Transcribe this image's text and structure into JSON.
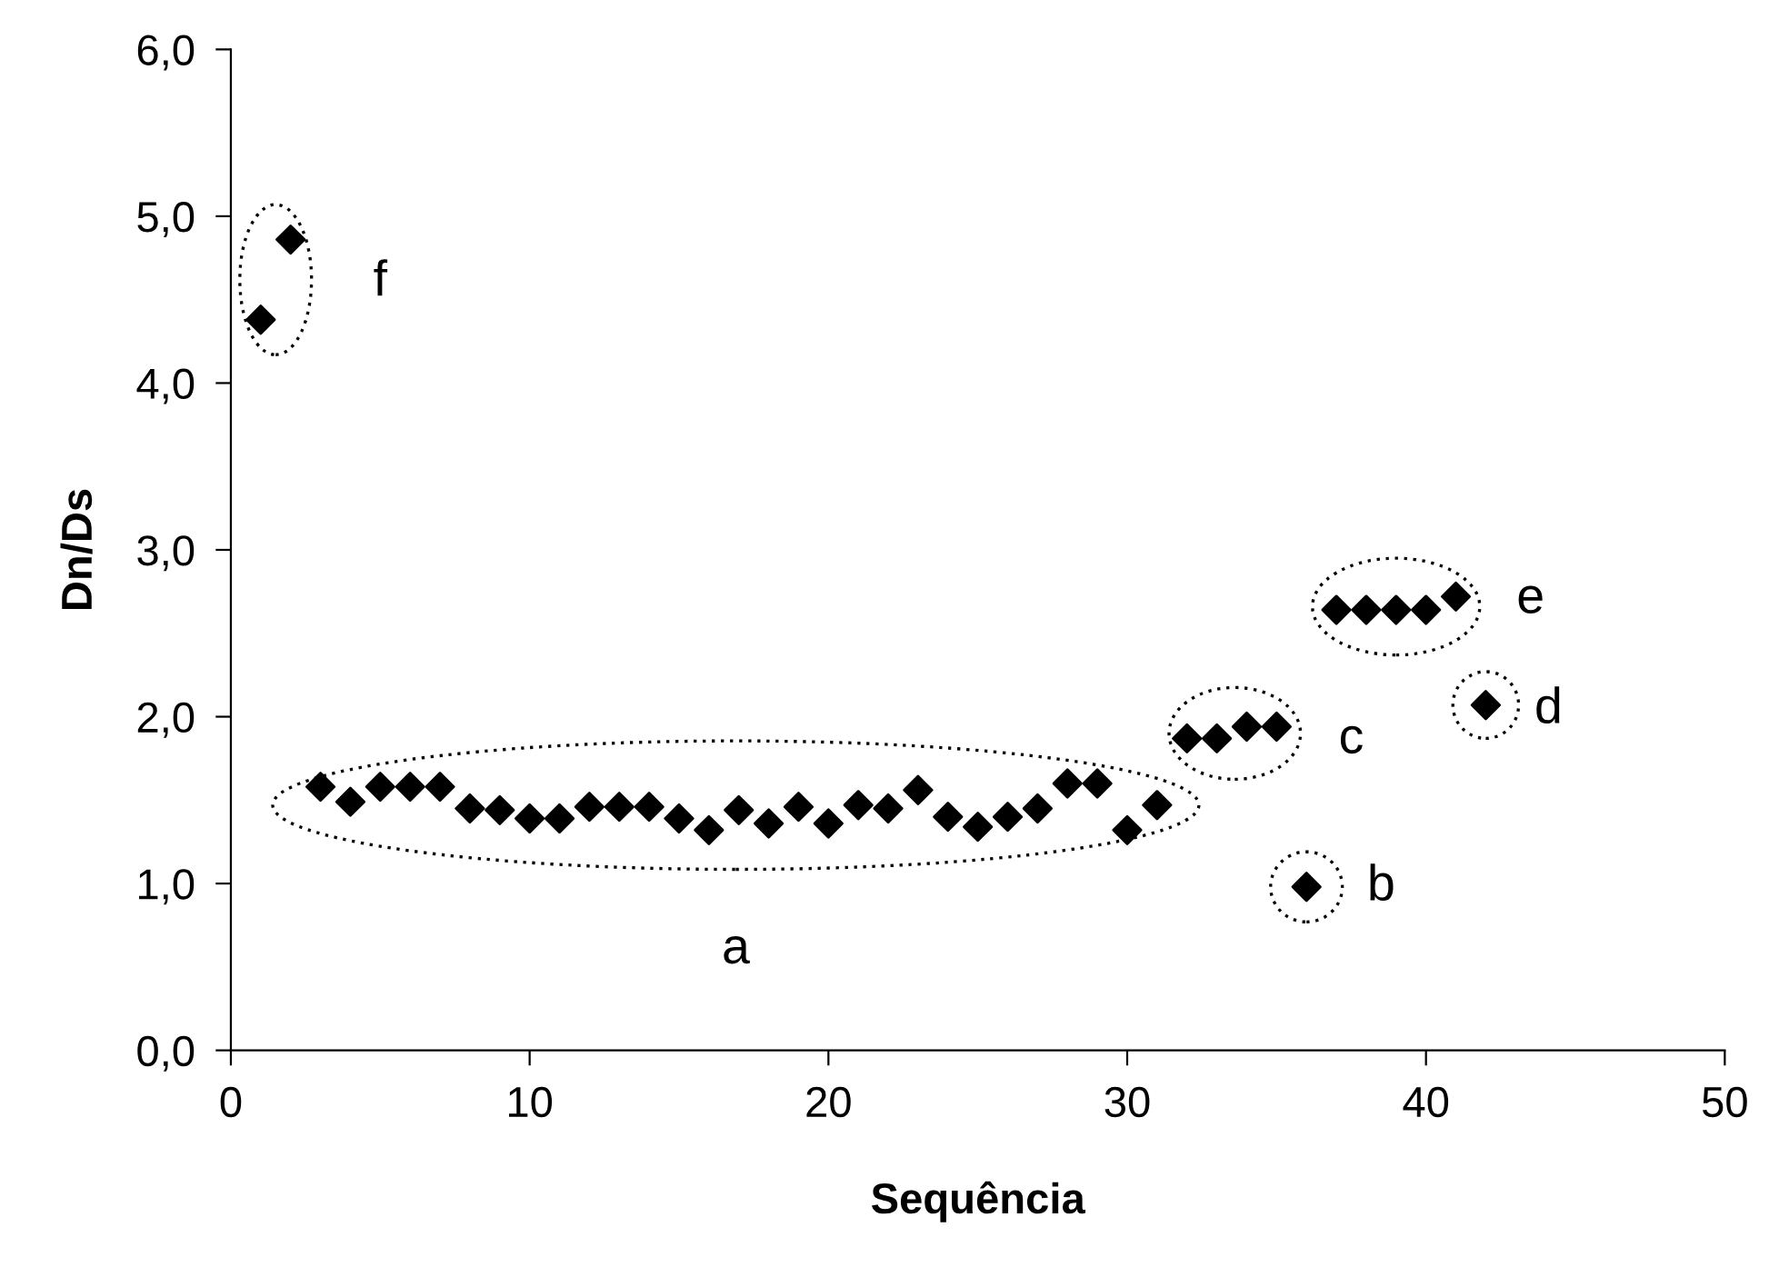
{
  "chart_data": {
    "type": "scatter",
    "xlabel": "Sequência",
    "ylabel": "Dn/Ds",
    "x": [
      1,
      2,
      3,
      4,
      5,
      6,
      7,
      8,
      9,
      10,
      11,
      12,
      13,
      14,
      15,
      16,
      17,
      18,
      19,
      20,
      21,
      22,
      23,
      24,
      25,
      26,
      27,
      28,
      29,
      30,
      31,
      32,
      33,
      34,
      35,
      36,
      37,
      38,
      39,
      40,
      41,
      42
    ],
    "series": [
      {
        "color": "#000000",
        "values": [
          4.38,
          4.86,
          1.58,
          1.49,
          1.58,
          1.58,
          1.58,
          1.45,
          1.44,
          1.39,
          1.39,
          1.46,
          1.46,
          1.46,
          1.39,
          1.32,
          1.44,
          1.36,
          1.46,
          1.36,
          1.47,
          1.45,
          1.56,
          1.4,
          1.34,
          1.4,
          1.45,
          1.6,
          1.6,
          1.32,
          1.47,
          1.87,
          1.87,
          1.94,
          1.94,
          0.98,
          2.64,
          2.64,
          2.64,
          2.64,
          2.72,
          2.07
        ]
      }
    ],
    "marker": "diamond",
    "grid": false,
    "xlim": [
      0,
      50
    ],
    "xticks": [
      0,
      10,
      20,
      30,
      40,
      50
    ],
    "ylim": [
      0,
      6
    ],
    "yticks": [
      {
        "value": 0,
        "label": "0,0"
      },
      {
        "value": 1,
        "label": "1,0"
      },
      {
        "value": 2,
        "label": "2,0"
      },
      {
        "value": 3,
        "label": "3,0"
      },
      {
        "value": 4,
        "label": "4,0"
      },
      {
        "value": 5,
        "label": "5,0"
      },
      {
        "value": 6,
        "label": "6,0"
      }
    ],
    "annotations": [
      "a",
      "b",
      "c",
      "d",
      "e",
      "f"
    ]
  }
}
